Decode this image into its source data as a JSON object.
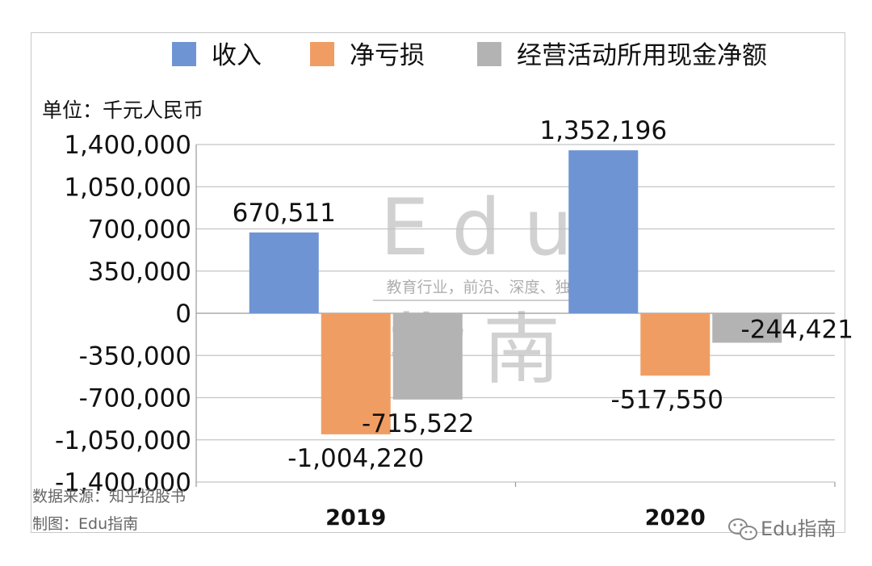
{
  "chart_data": {
    "type": "bar",
    "categories": [
      "2019",
      "2020"
    ],
    "series": [
      {
        "name": "收入",
        "values": [
          670511,
          1352196
        ],
        "labels": [
          "670,511",
          "1,352,196"
        ],
        "color": "#6f94d3"
      },
      {
        "name": "净亏损",
        "values": [
          -1004220,
          -517550
        ],
        "labels": [
          "-1,004,220",
          "-517,550"
        ],
        "color": "#f09d64"
      },
      {
        "name": "经营活动所用现金净额",
        "values": [
          -715522,
          -244421
        ],
        "labels": [
          "-715,522",
          "-244,421"
        ],
        "color": "#b3b3b3"
      }
    ],
    "ylim": [
      -1400000,
      1400000
    ],
    "yticks": [
      1400000,
      1050000,
      700000,
      350000,
      0,
      -350000,
      -700000,
      -1050000,
      -1400000
    ],
    "ytick_labels": [
      "1,400,000",
      "1,050,000",
      "700,000",
      "350,000",
      "0",
      "-350,000",
      "-700,000",
      "-1,050,000",
      "-1,400,000"
    ],
    "unit_label": "单位：千元人民币",
    "legend_position": "top",
    "grid": true
  },
  "source": {
    "line1": "数据来源：知乎招股书",
    "line2": "制图：Edu指南"
  },
  "watermark": {
    "big": "Edu",
    "tagline": "教育行业，前沿、深度、独家",
    "logo": "指南"
  },
  "brand": {
    "text": "Edu指南",
    "icon": "wechat-icon"
  }
}
